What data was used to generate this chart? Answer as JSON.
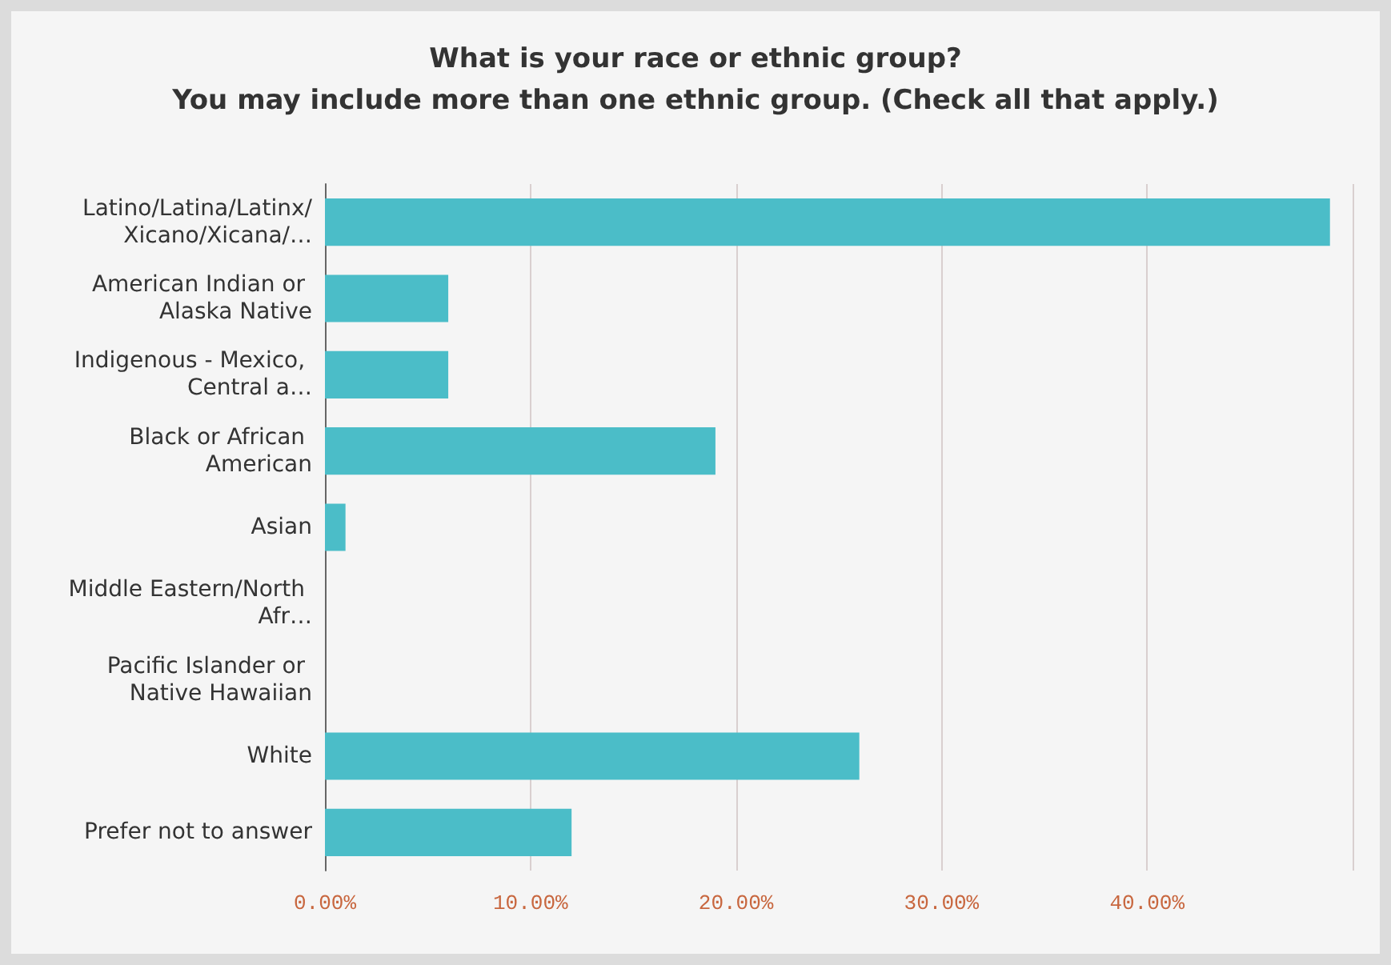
{
  "chart_data": {
    "type": "bar",
    "orientation": "horizontal",
    "title": "What is your race or ethnic group?\nYou may include more than one ethnic group. (Check all that apply.)",
    "categories": [
      "Latino/Latina/Latinx/Xicano/Xicana/…",
      "American Indian or Alaska Native",
      "Indigenous - Mexico, Central a…",
      "Black or African American",
      "Asian",
      "Middle Eastern/North Afr…",
      "Pacific Islander or Native Hawaiian",
      "White",
      "Prefer not to answer"
    ],
    "values": [
      48.9,
      6,
      6,
      19,
      1,
      0,
      0,
      26,
      12
    ],
    "color": "#4bbdc8",
    "xlim": [
      0,
      50
    ],
    "xticks": [
      {
        "value": 0,
        "label": "0.00%"
      },
      {
        "value": 10,
        "label": "10.00%"
      },
      {
        "value": 20,
        "label": "20.00%"
      },
      {
        "value": 30,
        "label": "30.00%"
      },
      {
        "value": 40,
        "label": "40.00%"
      },
      {
        "value": 50,
        "label": null
      }
    ],
    "grid": "x"
  }
}
